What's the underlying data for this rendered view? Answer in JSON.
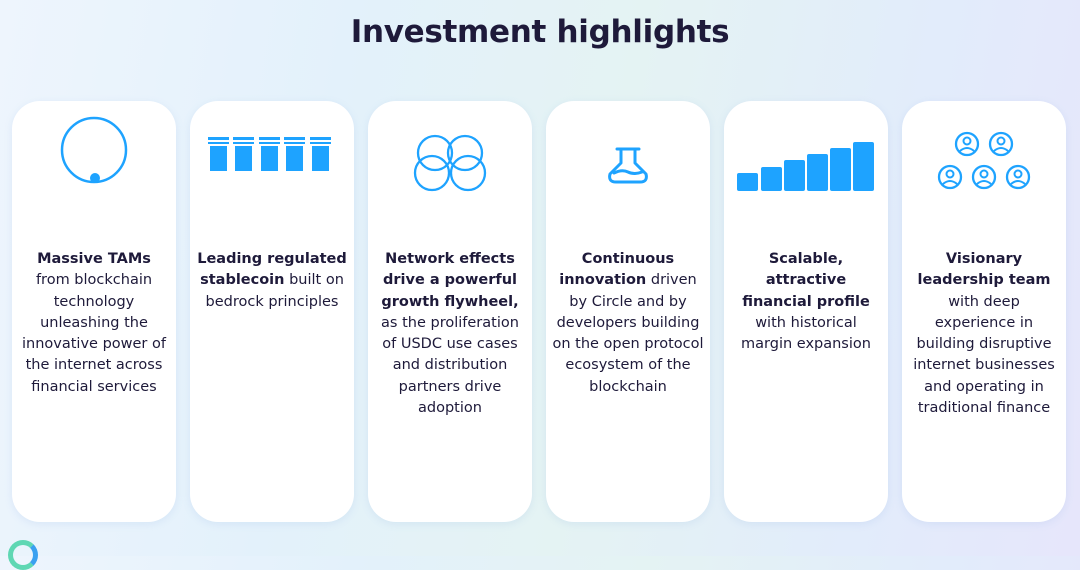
{
  "title": "Investment highlights",
  "accent_color": "#1ea3ff",
  "cards": [
    {
      "icon": "circle-dot-icon",
      "bold": "Massive TAMs",
      "text": " from blockchain technology unleashing the innovative power of the internet across financial services"
    },
    {
      "icon": "columns-icon",
      "bold": "Leading regulated stablecoin",
      "text": " built on bedrock principles"
    },
    {
      "icon": "venn-circles-icon",
      "bold": "Network effects drive a powerful growth flywheel,",
      "text": " as the proliferation of USDC use cases and distribution partners drive adoption"
    },
    {
      "icon": "flask-icon",
      "bold": "Continuous innovation",
      "text": " driven by Circle and by developers building on the open protocol ecosystem of the blockchain"
    },
    {
      "icon": "bar-growth-icon",
      "bold": "Scalable, attractive financial profile",
      "text": " with historical margin expansion"
    },
    {
      "icon": "team-icon",
      "bold": "Visionary leadership team",
      "text": " with deep experience in building disruptive internet businesses and operating in traditional finance"
    }
  ]
}
